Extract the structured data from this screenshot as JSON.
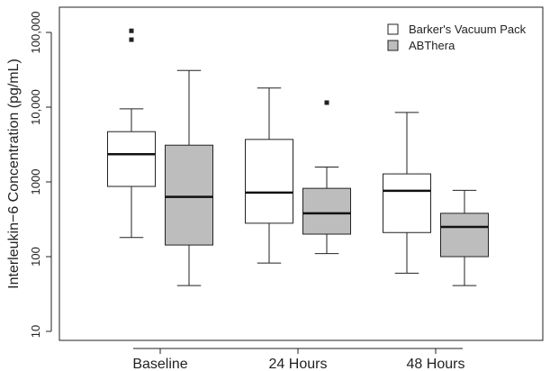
{
  "chart_data": {
    "type": "boxplot",
    "scale": "log10",
    "ylabel": "Interleukin−6 Concentration (pg/mL)",
    "ylim": [
      10,
      100000
    ],
    "yticks": [
      {
        "value": 10,
        "label": "10"
      },
      {
        "value": 100,
        "label": "100"
      },
      {
        "value": 1000,
        "label": "1000"
      },
      {
        "value": 10000,
        "label": "10,000"
      },
      {
        "value": 100000,
        "label": "100,000"
      }
    ],
    "categories": [
      "Baseline",
      "24 Hours",
      "48 Hours"
    ],
    "legend_position": "top-right",
    "series": [
      {
        "name": "Barker's Vacuum Pack",
        "color": "#ffffff",
        "boxes": [
          {
            "whisker_low": 180,
            "q1": 870,
            "median": 2350,
            "q3": 4700,
            "whisker_high": 9500,
            "outliers": [
              80000,
              105000
            ]
          },
          {
            "whisker_low": 82,
            "q1": 280,
            "median": 720,
            "q3": 3700,
            "whisker_high": 18000,
            "outliers": []
          },
          {
            "whisker_low": 60,
            "q1": 210,
            "median": 760,
            "q3": 1280,
            "whisker_high": 8500,
            "outliers": []
          }
        ]
      },
      {
        "name": "ABThera",
        "color": "#bdbdbd",
        "boxes": [
          {
            "whisker_low": 41,
            "q1": 143,
            "median": 630,
            "q3": 3100,
            "whisker_high": 31000,
            "outliers": []
          },
          {
            "whisker_low": 110,
            "q1": 200,
            "median": 380,
            "q3": 820,
            "whisker_high": 1580,
            "outliers": [
              11500
            ]
          },
          {
            "whisker_low": 41,
            "q1": 100,
            "median": 250,
            "q3": 380,
            "whisker_high": 770,
            "outliers": []
          }
        ]
      }
    ]
  }
}
